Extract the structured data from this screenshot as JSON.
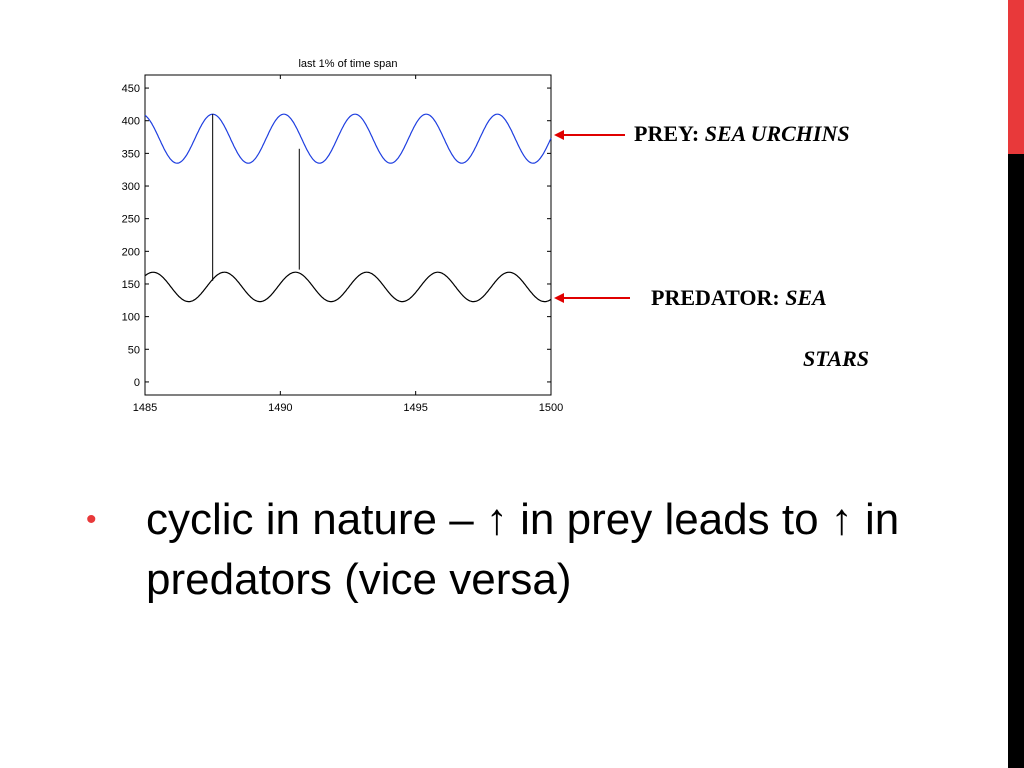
{
  "accents": {
    "red": "#e8393a",
    "black": "#000000",
    "prey_color": "#1f3fe0",
    "predator_color": "#000000"
  },
  "chart_data": {
    "type": "line",
    "title": "last 1% of time span",
    "xlabel": "",
    "ylabel": "",
    "xlim": [
      1485,
      1500
    ],
    "ylim": [
      -20,
      470
    ],
    "x_ticks": [
      1485,
      1490,
      1495,
      1500
    ],
    "y_ticks": [
      0,
      50,
      100,
      150,
      200,
      250,
      300,
      350,
      400,
      450
    ],
    "grid": false,
    "period": 2.63,
    "series": [
      {
        "key": "prey",
        "peaks_x": [
          1487.5,
          1490.1,
          1492.7,
          1495.3,
          1498.0
        ],
        "min": 335,
        "max": 410
      },
      {
        "key": "predator",
        "peaks_x": [
          1485.3,
          1488.0,
          1490.7,
          1493.3,
          1496.0,
          1498.6
        ],
        "min": 123,
        "max": 168
      }
    ],
    "annotation_lines": [
      {
        "x": 1487.5,
        "y_from": 155,
        "y_to": 410
      },
      {
        "x": 1490.7,
        "y_from": 172,
        "y_to": 357
      }
    ]
  },
  "labels": {
    "prey_prefix": "PREY: ",
    "prey_italic": "SEA URCHINS",
    "predator_prefix": "PREDATOR: ",
    "predator_italic": "SEA",
    "predator_italic2": "STARS"
  },
  "bullet": {
    "marker": "•",
    "text": "cyclic in nature – ↑ in prey leads to ↑ in  predators (vice versa)"
  }
}
